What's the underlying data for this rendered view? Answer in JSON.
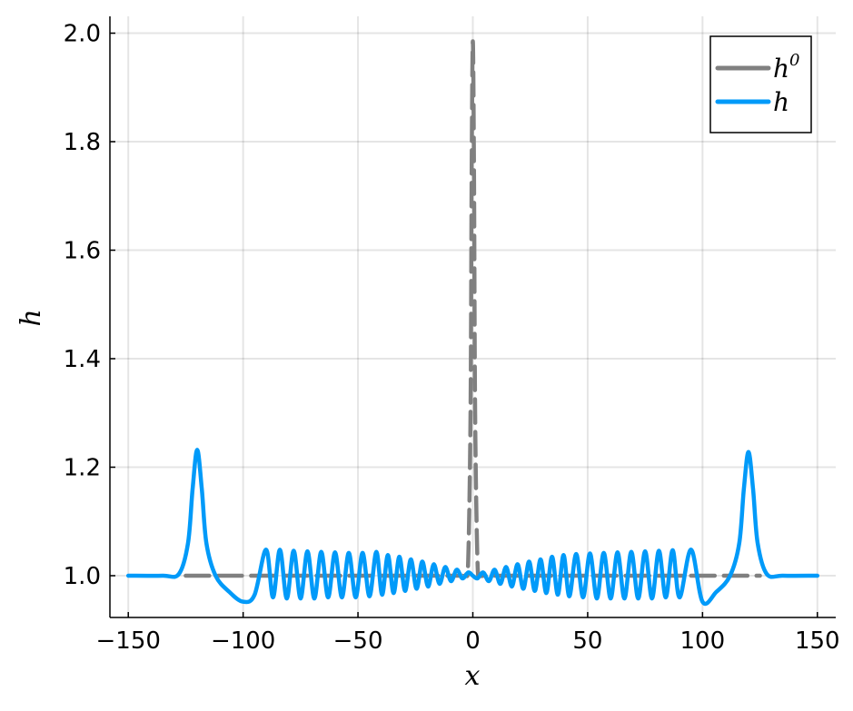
{
  "chart_data": {
    "type": "line",
    "xlabel": "x",
    "ylabel": "h",
    "xlim": [
      -158,
      158
    ],
    "ylim": [
      0.923,
      2.031
    ],
    "xticks": [
      -150,
      -100,
      -50,
      0,
      50,
      100,
      150
    ],
    "xtick_labels": [
      "−150",
      "−100",
      "−50",
      "0",
      "50",
      "100",
      "150"
    ],
    "yticks": [
      1.0,
      1.2,
      1.4,
      1.6,
      1.8,
      2.0
    ],
    "ytick_labels": [
      "1.0",
      "1.2",
      "1.4",
      "1.6",
      "1.8",
      "2.0"
    ],
    "grid": true,
    "legend_position": "top-right",
    "series": [
      {
        "name": "h",
        "name_superscript": "0",
        "color": "#808080",
        "style": "dashed",
        "x": [
          -125,
          -100,
          -50,
          -10,
          -5,
          -3,
          -2,
          -1,
          -0.5,
          0,
          0.5,
          1,
          2,
          3,
          5,
          10,
          50,
          100,
          125
        ],
        "y": [
          1.0,
          1.0,
          1.0,
          1.0,
          1.0,
          1.002,
          1.03,
          1.3,
          1.75,
          1.985,
          1.75,
          1.3,
          1.03,
          1.002,
          1.0,
          1.0,
          1.0,
          1.0,
          1.0
        ]
      },
      {
        "name": "h",
        "color": "#009af9",
        "style": "solid",
        "x": [
          -150,
          -135,
          -128,
          -124,
          -122,
          -120,
          -118,
          -116,
          -112,
          -106,
          -100,
          -95,
          -90,
          -87,
          -84,
          -81,
          -78,
          -75,
          -72,
          -69,
          -66,
          -63,
          -60,
          -57,
          -54,
          -51,
          -48,
          -45,
          -42,
          -39.5,
          -37,
          -34.5,
          -32,
          -29.5,
          -27,
          -24.5,
          -22,
          -19.5,
          -17,
          -14.5,
          -12,
          -9.5,
          -7,
          -4.5,
          -2,
          0,
          2,
          4.5,
          7,
          9.5,
          12,
          14.5,
          17,
          19.5,
          22,
          24.5,
          27,
          29.5,
          32,
          34.5,
          37,
          39.5,
          42,
          45,
          48,
          51,
          54,
          57,
          60,
          63,
          66,
          69,
          72,
          75,
          78,
          81,
          84,
          87,
          90,
          95,
          100,
          106,
          112,
          116,
          118,
          120,
          122,
          124,
          128,
          135,
          150
        ],
        "y": [
          1.0,
          1.0,
          1.003,
          1.06,
          1.16,
          1.232,
          1.16,
          1.06,
          1.0,
          0.97,
          0.952,
          0.965,
          1.048,
          0.96,
          1.048,
          0.958,
          1.046,
          0.958,
          1.045,
          0.958,
          1.044,
          0.96,
          1.043,
          0.96,
          1.042,
          0.96,
          1.042,
          0.962,
          1.044,
          0.965,
          1.038,
          0.968,
          1.035,
          0.972,
          1.03,
          0.976,
          1.026,
          0.98,
          1.021,
          0.985,
          1.016,
          0.99,
          1.011,
          0.995,
          1.006,
          1.0,
          0.995,
          1.006,
          0.99,
          1.011,
          0.985,
          1.016,
          0.98,
          1.021,
          0.976,
          1.026,
          0.972,
          1.03,
          0.968,
          1.035,
          0.965,
          1.038,
          0.962,
          1.04,
          0.96,
          1.041,
          0.958,
          1.042,
          0.958,
          1.043,
          0.958,
          1.044,
          0.958,
          1.045,
          0.958,
          1.046,
          0.96,
          1.047,
          0.96,
          1.048,
          0.952,
          0.97,
          1.0,
          1.06,
          1.16,
          1.228,
          1.16,
          1.06,
          1.003,
          1.0,
          1.0
        ]
      }
    ]
  }
}
